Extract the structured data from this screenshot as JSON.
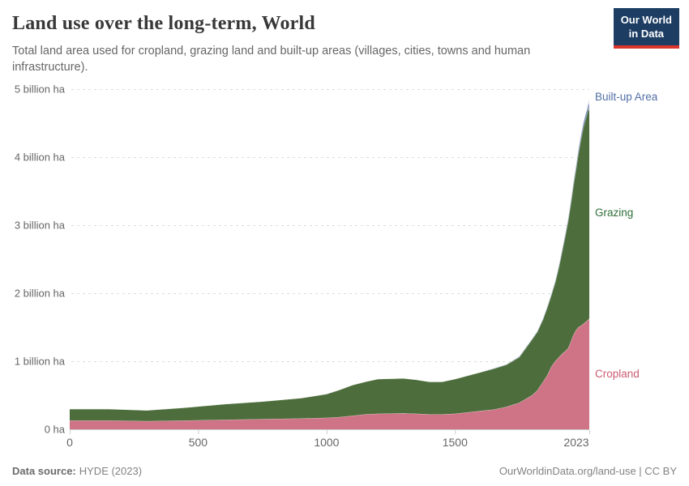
{
  "header": {
    "title": "Land use over the long-term, World",
    "subtitle": "Total land area used for cropland, grazing land and built-up areas (villages, cities, towns and human infrastructure).",
    "logo": {
      "line1": "Our World",
      "line2": "in Data",
      "bg_color": "#1d3d63",
      "accent_color": "#dc352c"
    }
  },
  "footer": {
    "source_label": "Data source:",
    "source_value": "HYDE (2023)",
    "link_text": "OurWorldinData.org/land-use | CC BY"
  },
  "chart_data": {
    "type": "area",
    "stacked": true,
    "title": "Land use over the long-term, World",
    "xlabel": "",
    "ylabel": "",
    "unit": "billion ha",
    "xlim": [
      0,
      2023
    ],
    "ylim": [
      0,
      5
    ],
    "grid": "horizontal-dashed",
    "grid_color": "#dcdcdc",
    "axis_line_color": "#cccccc",
    "axis_text_color": "#666666",
    "legend_position": "right-edge-labels",
    "x": [
      0,
      150,
      300,
      450,
      600,
      750,
      900,
      1000,
      1050,
      1100,
      1150,
      1200,
      1300,
      1350,
      1400,
      1450,
      1500,
      1550,
      1600,
      1650,
      1700,
      1750,
      1800,
      1820,
      1843,
      1860,
      1875,
      1890,
      1900,
      1910,
      1920,
      1930,
      1940,
      1950,
      1960,
      1970,
      1980,
      1990,
      2000,
      2010,
      2015,
      2019,
      2021,
      2022,
      2023
    ],
    "series": [
      {
        "key": "cropland",
        "name": "Cropland",
        "color": "#cf7386",
        "label_color": "#cb5b71",
        "values": [
          0.13,
          0.13,
          0.12,
          0.13,
          0.14,
          0.15,
          0.16,
          0.17,
          0.18,
          0.2,
          0.22,
          0.23,
          0.235,
          0.23,
          0.22,
          0.22,
          0.23,
          0.25,
          0.27,
          0.29,
          0.33,
          0.39,
          0.5,
          0.57,
          0.7,
          0.8,
          0.92,
          1.0,
          1.04,
          1.08,
          1.12,
          1.15,
          1.19,
          1.28,
          1.38,
          1.45,
          1.5,
          1.52,
          1.55,
          1.58,
          1.6,
          1.61,
          1.62,
          1.63,
          1.63
        ]
      },
      {
        "key": "grazing",
        "name": "Grazing",
        "color": "#4d6e3c",
        "label_color": "#2f6e37",
        "values": [
          0.17,
          0.17,
          0.16,
          0.19,
          0.23,
          0.26,
          0.3,
          0.35,
          0.4,
          0.45,
          0.48,
          0.51,
          0.515,
          0.5,
          0.48,
          0.48,
          0.51,
          0.54,
          0.57,
          0.6,
          0.62,
          0.67,
          0.82,
          0.86,
          0.92,
          1.0,
          1.05,
          1.16,
          1.27,
          1.4,
          1.55,
          1.7,
          1.86,
          2.01,
          2.17,
          2.34,
          2.54,
          2.73,
          2.89,
          3.0,
          3.04,
          3.1,
          3.15,
          3.05,
          3.1
        ]
      },
      {
        "key": "builtup",
        "name": "Built-up Area",
        "color": "#7286b8",
        "label_color": "#516fa5",
        "values": [
          0,
          0,
          0,
          0,
          0,
          0,
          0,
          0,
          0,
          0,
          0,
          0,
          0,
          0,
          0,
          0,
          0,
          0,
          0,
          0.005,
          0.005,
          0.01,
          0.01,
          0.01,
          0.015,
          0.015,
          0.02,
          0.02,
          0.025,
          0.03,
          0.03,
          0.035,
          0.04,
          0.045,
          0.05,
          0.055,
          0.06,
          0.065,
          0.07,
          0.075,
          0.075,
          0.08,
          0.08,
          0.08,
          0.08
        ]
      }
    ],
    "y_ticks": [
      {
        "value": 0,
        "label": "0 ha"
      },
      {
        "value": 1,
        "label": "1 billion ha"
      },
      {
        "value": 2,
        "label": "2 billion ha"
      },
      {
        "value": 3,
        "label": "3 billion ha"
      },
      {
        "value": 4,
        "label": "4 billion ha"
      },
      {
        "value": 5,
        "label": "5 billion ha"
      }
    ],
    "x_ticks": [
      {
        "value": 0,
        "label": "0"
      },
      {
        "value": 500,
        "label": "500"
      },
      {
        "value": 1000,
        "label": "1000"
      },
      {
        "value": 1500,
        "label": "1500"
      },
      {
        "value": 2023,
        "label": "2023"
      }
    ]
  }
}
